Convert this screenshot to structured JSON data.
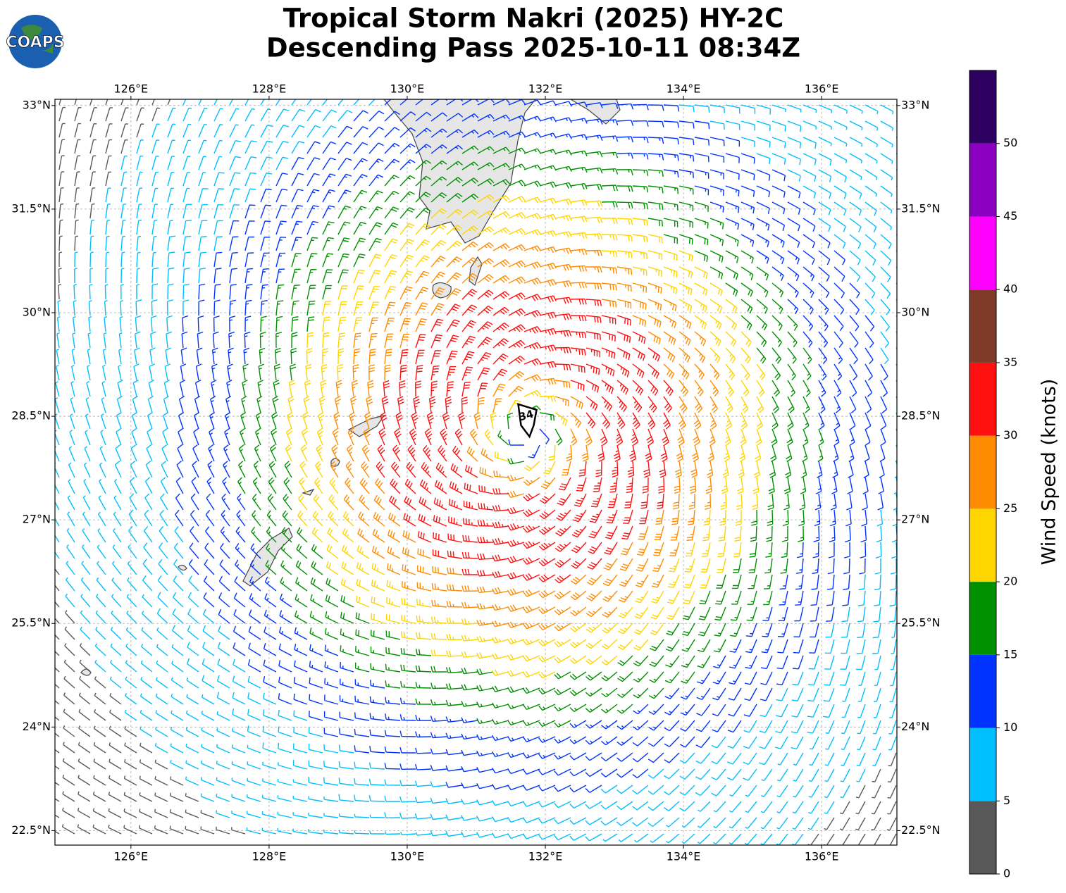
{
  "header": {
    "title": "Tropical Storm Nakri (2025) HY-2C",
    "subtitle": "Descending Pass 2025-10-11 08:34Z"
  },
  "logo": {
    "text": "COAPS"
  },
  "map": {
    "lon_range": [
      124.9,
      137.09
    ],
    "lat_range": [
      22.29,
      33.09
    ],
    "lon_ticks": [
      {
        "value": 126,
        "label": "126°E"
      },
      {
        "value": 128,
        "label": "128°E"
      },
      {
        "value": 130,
        "label": "130°E"
      },
      {
        "value": 132,
        "label": "132°E"
      },
      {
        "value": 134,
        "label": "134°E"
      },
      {
        "value": 136,
        "label": "136°E"
      }
    ],
    "lat_ticks": [
      {
        "value": 33,
        "label": "33°N"
      },
      {
        "value": 31.5,
        "label": "31.5°N"
      },
      {
        "value": 30,
        "label": "30°N"
      },
      {
        "value": 28.5,
        "label": "28.5°N"
      },
      {
        "value": 27,
        "label": "27°N"
      },
      {
        "value": 25.5,
        "label": "25.5°N"
      },
      {
        "value": 24,
        "label": "24°N"
      },
      {
        "value": 22.5,
        "label": "22.5°N"
      }
    ],
    "storm_marker": {
      "label": "34",
      "lon": 131.75,
      "lat": 28.45
    }
  },
  "colorbar": {
    "label": "Wind Speed (knots)",
    "bounds": [
      0,
      5,
      10,
      15,
      20,
      25,
      30,
      35,
      40,
      45,
      50,
      55
    ],
    "colors": [
      "#595959",
      "#00bfff",
      "#0033ff",
      "#009000",
      "#ffd500",
      "#ff8c00",
      "#ff1010",
      "#803a28",
      "#ff00ff",
      "#8b00c0",
      "#2e0060"
    ],
    "ticks": [
      0,
      5,
      10,
      15,
      20,
      25,
      30,
      35,
      40,
      45,
      50
    ]
  }
}
